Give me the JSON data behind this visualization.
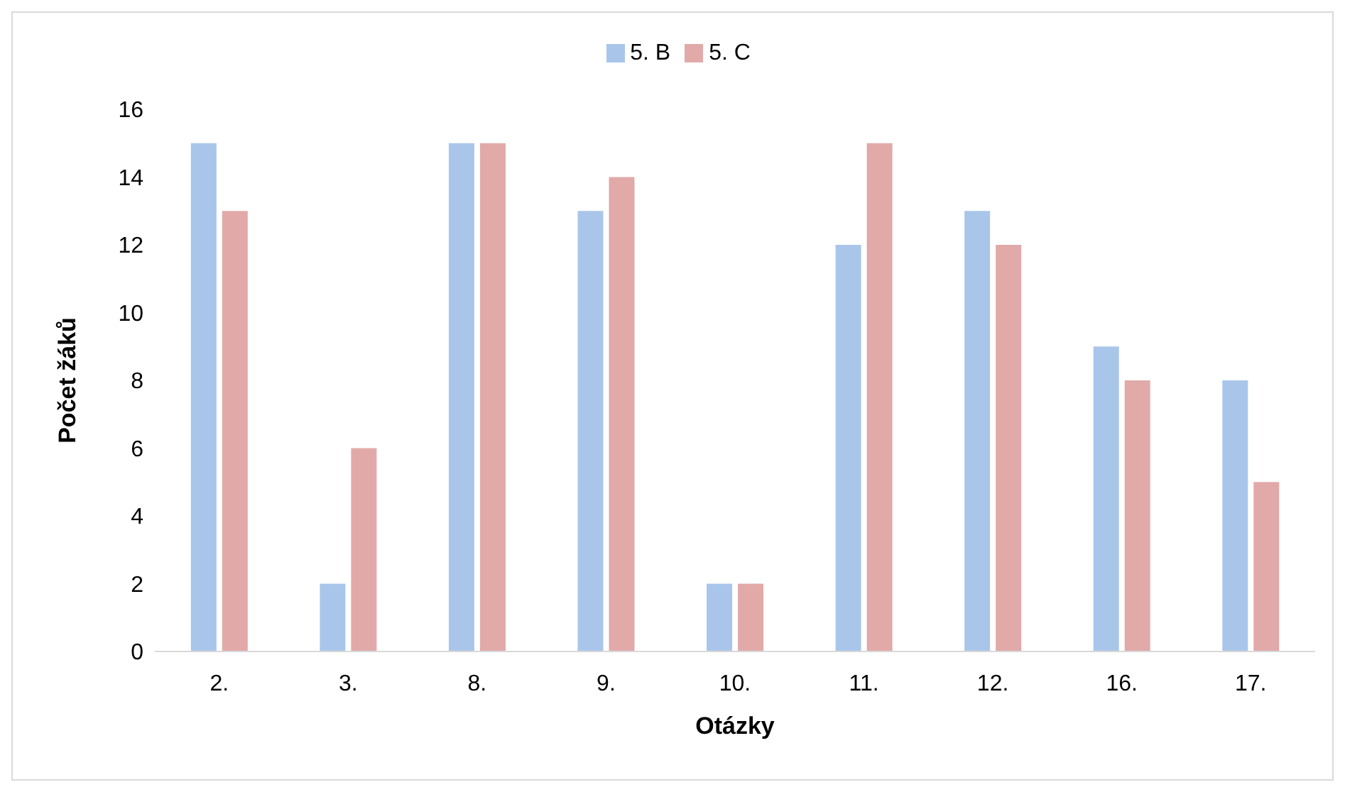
{
  "chart_data": {
    "type": "bar",
    "xlabel": "Otázky",
    "ylabel": "Počet žáků",
    "categories": [
      "2.",
      "3.",
      "8.",
      "9.",
      "10.",
      "11.",
      "12.",
      "16.",
      "17."
    ],
    "series": [
      {
        "name": "5. B",
        "color": "#a9c6ea",
        "values": [
          15,
          2,
          15,
          13,
          2,
          12,
          13,
          9,
          8
        ]
      },
      {
        "name": "5. C",
        "color": "#e2a9a9",
        "values": [
          13,
          6,
          15,
          14,
          2,
          15,
          12,
          8,
          5
        ]
      }
    ],
    "ylim": [
      0,
      16
    ],
    "yticks": [
      0,
      2,
      4,
      6,
      8,
      10,
      12,
      14,
      16
    ],
    "grid": false,
    "legend": "top"
  }
}
